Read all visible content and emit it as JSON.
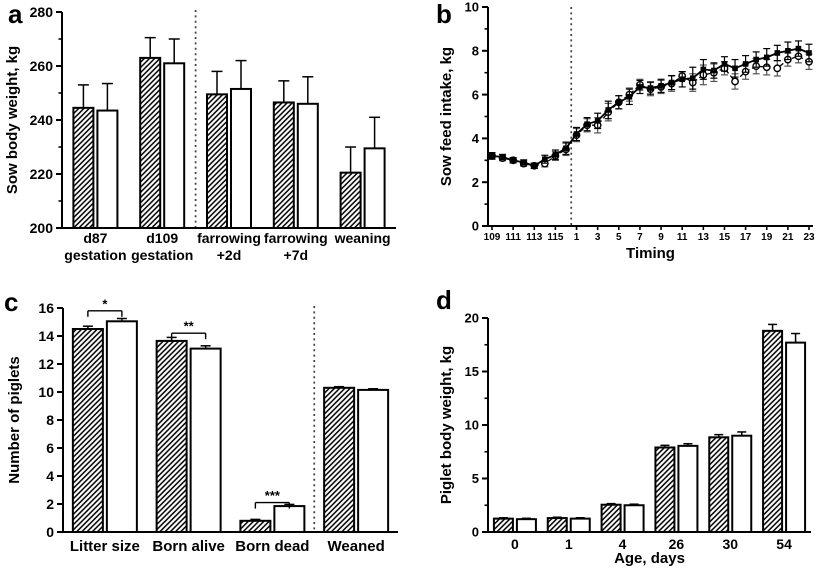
{
  "figure": {
    "background": "#ffffff",
    "ink": "#000000",
    "separator_color": "#3f3f3f",
    "open_series_error_color": "#555555"
  },
  "chart_data": [
    {
      "id": "a",
      "panel_label": "a",
      "type": "bar",
      "ylabel": "Sow body weight, kg",
      "xlabel": "",
      "ylim": [
        200,
        280
      ],
      "ytick_step": 20,
      "minor_ticks": true,
      "categories": [
        [
          "d87",
          "gestation"
        ],
        [
          "d109",
          "gestation"
        ],
        [
          "farrowing",
          "+2d"
        ],
        [
          "farrowing",
          "+7d"
        ],
        [
          "weaning"
        ]
      ],
      "series": [
        {
          "name": "hatched-bars",
          "style": "hatched",
          "values": [
            244.5,
            263,
            249.5,
            246.5,
            220.5
          ],
          "errors": [
            8.5,
            7.5,
            8.5,
            8,
            9.5
          ]
        },
        {
          "name": "open-bars",
          "style": "open",
          "values": [
            243.5,
            261,
            251.5,
            246,
            229.5
          ],
          "errors": [
            10,
            9,
            10.5,
            10,
            11.5
          ]
        }
      ],
      "separator_after_category": 1
    },
    {
      "id": "b",
      "panel_label": "b",
      "type": "line",
      "ylabel": "Sow feed intake, kg",
      "xlabel": "Timing",
      "ylim": [
        0,
        10
      ],
      "ytick_step": 2,
      "minor_ticks": true,
      "n_points": 31,
      "xtick_labels": [
        "109",
        "111",
        "113",
        "115",
        "1",
        "3",
        "5",
        "7",
        "9",
        "11",
        "13",
        "15",
        "17",
        "19",
        "21",
        "23"
      ],
      "xtick_every": 2,
      "separator_after_index": 7,
      "series": [
        {
          "name": "filled-squares-solid-line",
          "style": "filled-square",
          "line": "solid",
          "values": [
            3.2,
            3.15,
            3.0,
            2.9,
            2.75,
            3.05,
            3.25,
            3.55,
            4.2,
            4.65,
            4.8,
            5.3,
            5.65,
            5.9,
            6.35,
            6.3,
            6.4,
            6.55,
            6.7,
            6.75,
            7.15,
            7.1,
            7.4,
            7.2,
            7.4,
            7.6,
            7.7,
            7.9,
            8.0,
            8.1,
            7.9
          ],
          "errors": [
            0.15,
            0.12,
            0.12,
            0.12,
            0.12,
            0.18,
            0.22,
            0.28,
            0.3,
            0.3,
            0.35,
            0.4,
            0.3,
            0.35,
            0.3,
            0.28,
            0.3,
            0.32,
            0.35,
            0.5,
            0.45,
            0.35,
            0.33,
            0.4,
            0.38,
            0.35,
            0.4,
            0.35,
            0.4,
            0.35,
            0.4
          ]
        },
        {
          "name": "open-circles-dashed-line",
          "style": "open-circle",
          "line": "dashed",
          "values": [
            3.2,
            3.1,
            3.0,
            2.85,
            2.75,
            2.85,
            3.2,
            3.5,
            4.15,
            4.6,
            4.6,
            5.2,
            5.65,
            6.0,
            6.45,
            6.25,
            6.35,
            6.5,
            6.85,
            6.55,
            6.9,
            7.0,
            7.2,
            6.6,
            7.05,
            7.3,
            7.25,
            7.2,
            7.6,
            7.75,
            7.5
          ],
          "errors": [
            0.12,
            0.12,
            0.12,
            0.12,
            0.12,
            0.15,
            0.2,
            0.28,
            0.3,
            0.3,
            0.35,
            0.4,
            0.3,
            0.3,
            0.25,
            0.3,
            0.3,
            0.35,
            0.2,
            0.4,
            0.45,
            0.4,
            0.3,
            0.35,
            0.35,
            0.35,
            0.35,
            0.35,
            0.3,
            0.3,
            0.35
          ]
        }
      ]
    },
    {
      "id": "c",
      "panel_label": "c",
      "type": "bar",
      "ylabel": "Number of piglets",
      "xlabel": "",
      "ylim": [
        0,
        16
      ],
      "ytick_step": 2,
      "minor_ticks": false,
      "categories": [
        "Litter size",
        "Born alive",
        "Born dead",
        "Weaned"
      ],
      "series": [
        {
          "name": "hatched-bars",
          "style": "hatched",
          "values": [
            14.5,
            13.65,
            0.8,
            10.3
          ],
          "errors": [
            0.2,
            0.25,
            0.1,
            0.08
          ]
        },
        {
          "name": "open-bars",
          "style": "open",
          "values": [
            15.05,
            13.1,
            1.85,
            10.15
          ],
          "errors": [
            0.2,
            0.2,
            0.12,
            0.08
          ]
        }
      ],
      "separator_after_category": 2,
      "significance": [
        {
          "category_index": 0,
          "label": "*",
          "y": 15.8
        },
        {
          "category_index": 1,
          "label": "**",
          "y": 14.2
        },
        {
          "category_index": 2,
          "label": "***",
          "y": 2.1
        }
      ]
    },
    {
      "id": "d",
      "panel_label": "d",
      "type": "bar",
      "ylabel": "Piglet body weight, kg",
      "xlabel": "Age, days",
      "ylim": [
        0,
        20
      ],
      "ytick_step": 5,
      "minor_ticks": true,
      "categories": [
        "0",
        "1",
        "4",
        "26",
        "30",
        "54"
      ],
      "series": [
        {
          "name": "hatched-bars",
          "style": "hatched",
          "values": [
            1.25,
            1.3,
            2.55,
            7.9,
            8.85,
            18.8
          ],
          "errors": [
            0.08,
            0.08,
            0.1,
            0.2,
            0.25,
            0.6
          ]
        },
        {
          "name": "open-bars",
          "style": "open",
          "values": [
            1.2,
            1.25,
            2.5,
            8.05,
            9.0,
            17.7
          ],
          "errors": [
            0.08,
            0.08,
            0.1,
            0.2,
            0.35,
            0.85
          ]
        }
      ]
    }
  ]
}
